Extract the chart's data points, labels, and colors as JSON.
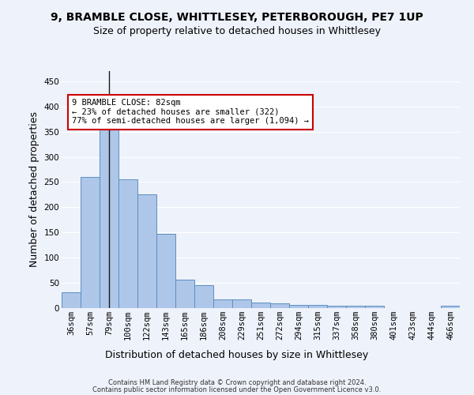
{
  "title": "9, BRAMBLE CLOSE, WHITTLESEY, PETERBOROUGH, PE7 1UP",
  "subtitle": "Size of property relative to detached houses in Whittlesey",
  "xlabel": "Distribution of detached houses by size in Whittlesey",
  "ylabel": "Number of detached properties",
  "bin_labels": [
    "36sqm",
    "57sqm",
    "79sqm",
    "100sqm",
    "122sqm",
    "143sqm",
    "165sqm",
    "186sqm",
    "208sqm",
    "229sqm",
    "251sqm",
    "272sqm",
    "294sqm",
    "315sqm",
    "337sqm",
    "358sqm",
    "380sqm",
    "401sqm",
    "423sqm",
    "444sqm",
    "466sqm"
  ],
  "bar_heights": [
    31,
    260,
    362,
    256,
    225,
    148,
    57,
    45,
    18,
    18,
    11,
    10,
    7,
    6,
    4,
    4,
    4,
    0,
    0,
    0,
    4
  ],
  "bar_color": "#aec6e8",
  "bar_edge_color": "#5a8fc2",
  "property_bin_index": 2,
  "annotation_title": "9 BRAMBLE CLOSE: 82sqm",
  "annotation_line1": "← 23% of detached houses are smaller (322)",
  "annotation_line2": "77% of semi-detached houses are larger (1,094) →",
  "vline_color": "#1a1a1a",
  "annotation_box_color": "#ffffff",
  "annotation_box_edge": "#cc0000",
  "ylim": [
    0,
    470
  ],
  "yticks": [
    0,
    50,
    100,
    150,
    200,
    250,
    300,
    350,
    400,
    450
  ],
  "footer1": "Contains HM Land Registry data © Crown copyright and database right 2024.",
  "footer2": "Contains public sector information licensed under the Open Government Licence v3.0.",
  "background_color": "#eef2fb",
  "grid_color": "#ffffff",
  "title_fontsize": 10,
  "subtitle_fontsize": 9,
  "ylabel_fontsize": 9,
  "xlabel_fontsize": 9,
  "tick_fontsize": 7.5,
  "annotation_fontsize": 7.5,
  "footer_fontsize": 6
}
